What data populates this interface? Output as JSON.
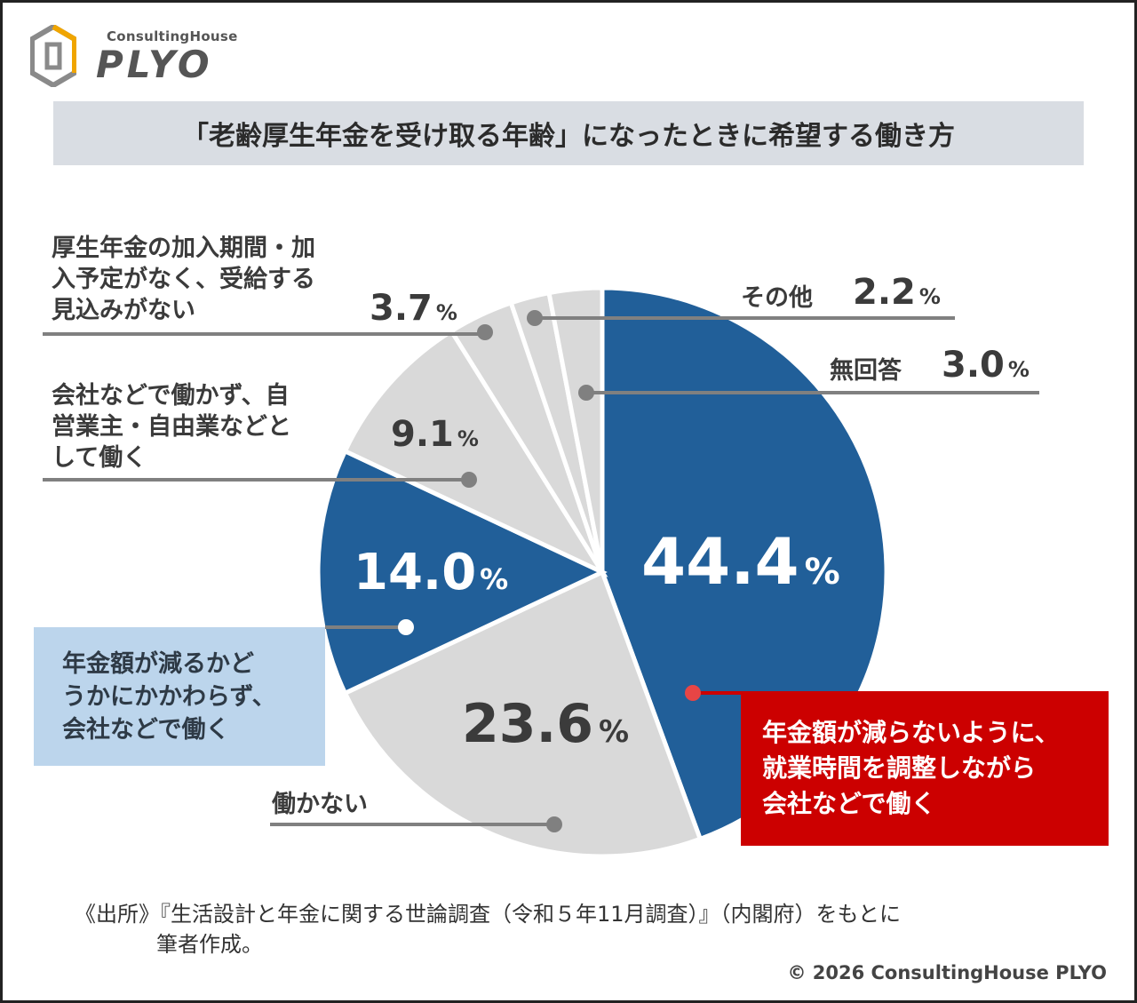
{
  "logo": {
    "small": "ConsultingHouse",
    "big": "PLYO"
  },
  "title": "「老齢厚生年金を受け取る年齢」になったときに希望する働き方",
  "labels": {
    "kousei_line1": "厚生年金の加入期間・加",
    "kousei_line2": "入予定がなく、受給する",
    "kousei_line3": "見込みがない",
    "kousei_pct": "3.7",
    "jiei_line1": "会社などで働かず、自",
    "jiei_line2": "営業主・自由業などと",
    "jiei_line3": "して働く",
    "jiei_pct": "9.1",
    "sonota": "その他",
    "sonota_pct": "2.2",
    "mukaitou": "無回答",
    "mukaitou_pct": "3.0",
    "hatarakanai": "働かない",
    "hatarakanai_pct": "23.6",
    "kakawarazu_pct": "14.0",
    "chousei_pct": "44.4",
    "unit": "%"
  },
  "callouts": {
    "light_line1": "年金額が減るかど",
    "light_line2": "うかにかかわらず、",
    "light_line3": "会社などで働く",
    "red_line1": "年金額が減らないように、",
    "red_line2": "就業時間を調整しながら",
    "red_line3": "会社などで働く"
  },
  "source": {
    "line1": "《出所》『生活設計と年金に関する世論調査（令和５年11月調査）』（内閣府）をもとに",
    "line2": "筆者作成。"
  },
  "copyright": "© 2026 ConsultingHouse PLYO",
  "colors": {
    "blue": "#215f99",
    "grey": "#d9d9d9",
    "leader": "#808080",
    "red": "#cc0000",
    "light_box": "#bcd5ec"
  },
  "chart_data": {
    "type": "pie",
    "title": "「老齢厚生年金を受け取る年齢」になったときに希望する働き方",
    "start": "12 o'clock, clockwise",
    "slices": [
      {
        "name": "年金額が減らないように、就業時間を調整しながら会社などで働く",
        "value": 44.4,
        "color": "#215f99"
      },
      {
        "name": "働かない",
        "value": 23.6,
        "color": "#d9d9d9"
      },
      {
        "name": "年金額が減るかどうかにかかわらず、会社などで働く",
        "value": 14.0,
        "color": "#215f99"
      },
      {
        "name": "会社などで働かず、自営業主・自由業などとして働く",
        "value": 9.1,
        "color": "#d9d9d9"
      },
      {
        "name": "厚生年金の加入期間・加入予定がなく、受給する見込みがない",
        "value": 3.7,
        "color": "#d9d9d9"
      },
      {
        "name": "その他",
        "value": 2.2,
        "color": "#d9d9d9"
      },
      {
        "name": "無回答",
        "value": 3.0,
        "color": "#d9d9d9"
      }
    ]
  }
}
